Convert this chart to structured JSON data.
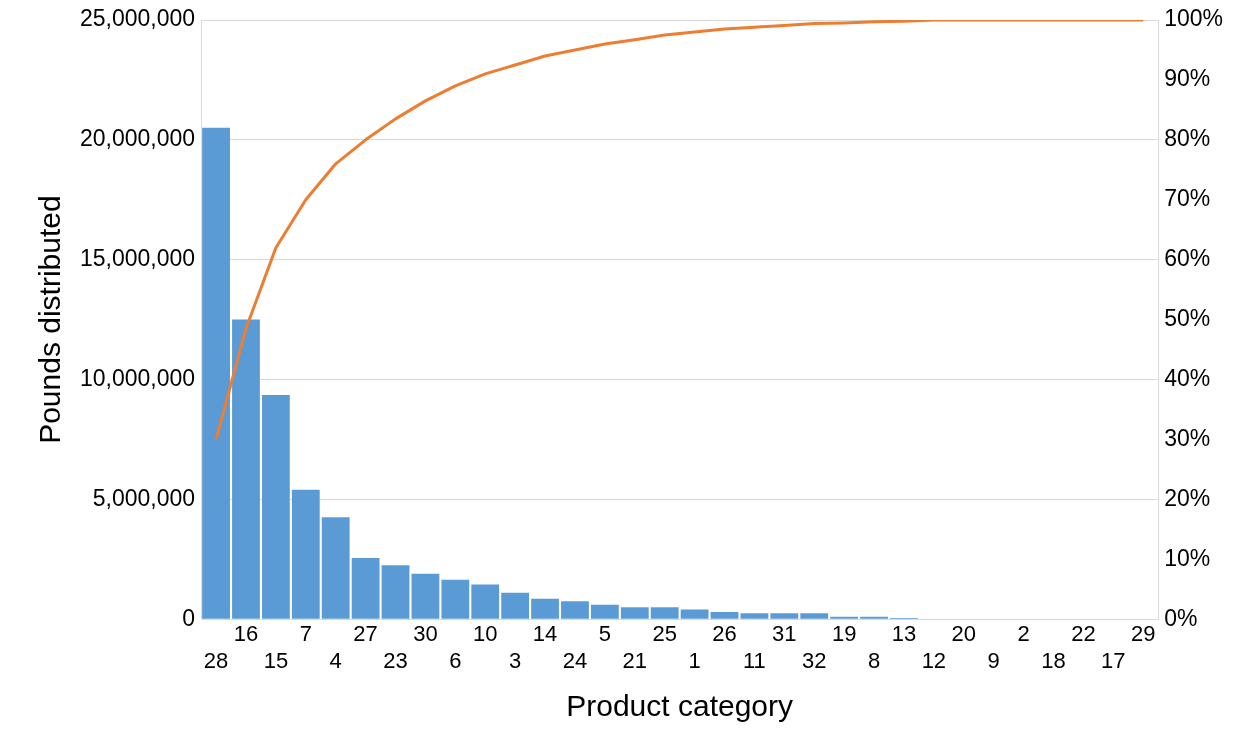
{
  "chart_data": {
    "type": "bar",
    "xlabel": "Product category",
    "ylabel": "Pounds distributed",
    "categories": [
      "28",
      "16",
      "15",
      "7",
      "4",
      "27",
      "23",
      "30",
      "6",
      "10",
      "3",
      "14",
      "24",
      "5",
      "21",
      "25",
      "1",
      "26",
      "11",
      "31",
      "32",
      "19",
      "8",
      "13",
      "12",
      "20",
      "9",
      "2",
      "18",
      "22",
      "17",
      "29"
    ],
    "series": [
      {
        "color": "#5b9bd5",
        "values": [
          20500000,
          12500000,
          9350000,
          5400000,
          4250000,
          2550000,
          2250000,
          1900000,
          1650000,
          1450000,
          1100000,
          850000,
          750000,
          600000,
          500000,
          500000,
          400000,
          300000,
          250000,
          250000,
          250000,
          100000,
          100000,
          50000,
          0,
          0,
          0,
          0,
          0,
          0,
          0,
          0
        ]
      },
      {
        "type": "line",
        "axis": "y2",
        "color": "#ed7d31",
        "values": [
          30,
          48.5,
          62,
          70,
          76,
          80,
          83.5,
          86.5,
          89,
          91,
          92.5,
          94,
          95,
          96,
          96.7,
          97.5,
          98,
          98.5,
          98.8,
          99.1,
          99.4,
          99.5,
          99.7,
          99.8,
          100,
          100,
          100,
          100,
          100,
          100,
          100,
          100
        ]
      }
    ],
    "ylim": [
      0,
      25000000
    ],
    "yticks": [
      0,
      {
        "value": 5000000,
        "label": "5,000,000"
      },
      {
        "value": 10000000,
        "label": "10,000,000"
      },
      {
        "value": 15000000,
        "label": "15,000,000"
      },
      {
        "value": 20000000,
        "label": "20,000,000"
      },
      {
        "value": 25000000,
        "label": "25,000,000"
      }
    ],
    "y2lim": [
      0,
      100
    ],
    "y2ticks": [
      {
        "value": 0,
        "label": "0%"
      },
      {
        "value": 10,
        "label": "10%"
      },
      {
        "value": 20,
        "label": "20%"
      },
      {
        "value": 30,
        "label": "30%"
      },
      {
        "value": 40,
        "label": "40%"
      },
      {
        "value": 50,
        "label": "50%"
      },
      {
        "value": 60,
        "label": "60%"
      },
      {
        "value": 70,
        "label": "70%"
      },
      {
        "value": 80,
        "label": "80%"
      },
      {
        "value": 90,
        "label": "90%"
      },
      {
        "value": 100,
        "label": "100%"
      }
    ],
    "grid": "y",
    "legend": false,
    "marker": "none",
    "line_style": "solid"
  }
}
